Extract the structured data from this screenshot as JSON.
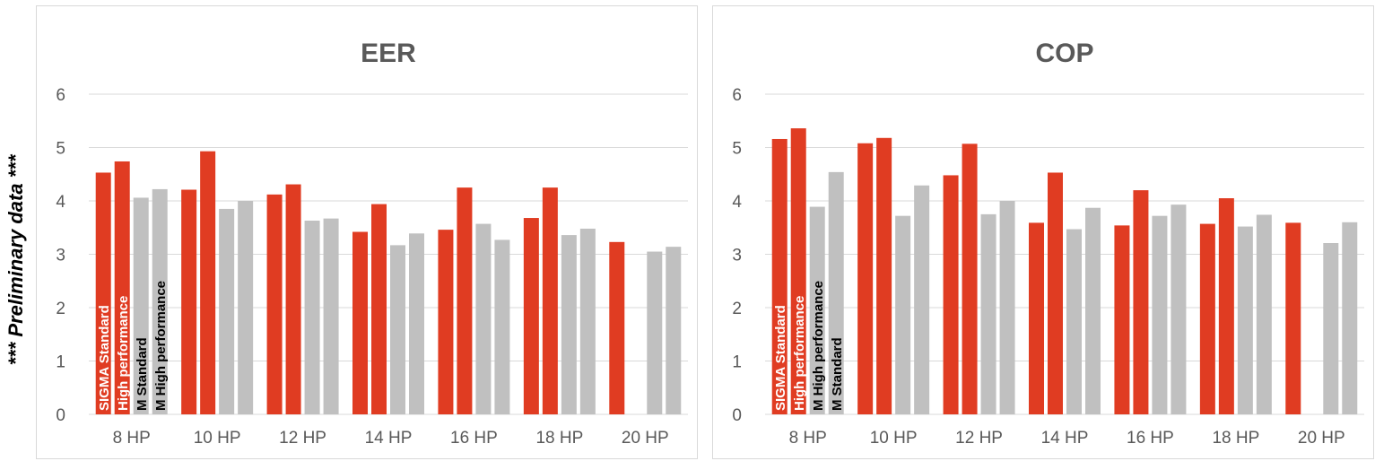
{
  "side_note": "*** Preliminary data ***",
  "colors": {
    "sigma": "#e03c22",
    "m": "#c0c0c0",
    "grid": "#d9d9d9",
    "text": "#595959"
  },
  "chart_data": [
    {
      "type": "bar",
      "title": "EER",
      "categories": [
        "8 HP",
        "10 HP",
        "12 HP",
        "14 HP",
        "16 HP",
        "18 HP",
        "20 HP"
      ],
      "ylim": [
        0,
        6
      ],
      "yticks": [
        0,
        1,
        2,
        3,
        4,
        5,
        6
      ],
      "grid": true,
      "series": [
        {
          "name": "SIGMA Standard",
          "color": "#e03c22",
          "values": [
            4.53,
            4.21,
            4.12,
            3.42,
            3.46,
            3.68,
            3.23
          ]
        },
        {
          "name": "High performance",
          "color": "#e03c22",
          "values": [
            4.74,
            4.93,
            4.31,
            3.94,
            4.25,
            4.25,
            null
          ]
        },
        {
          "name": "M Standard",
          "color": "#c0c0c0",
          "values": [
            4.06,
            3.85,
            3.63,
            3.17,
            3.57,
            3.36,
            3.05
          ]
        },
        {
          "name": "M High performance",
          "color": "#c0c0c0",
          "values": [
            4.22,
            4.0,
            3.67,
            3.39,
            3.27,
            3.48,
            3.14
          ]
        }
      ]
    },
    {
      "type": "bar",
      "title": "COP",
      "categories": [
        "8 HP",
        "10 HP",
        "12 HP",
        "14 HP",
        "16 HP",
        "18 HP",
        "20 HP"
      ],
      "ylim": [
        0,
        6
      ],
      "yticks": [
        0,
        1,
        2,
        3,
        4,
        5,
        6
      ],
      "grid": true,
      "series": [
        {
          "name": "SIGMA Standard",
          "color": "#e03c22",
          "values": [
            5.16,
            5.08,
            4.48,
            3.59,
            3.54,
            3.57,
            3.59
          ]
        },
        {
          "name": "High performance",
          "color": "#e03c22",
          "values": [
            5.36,
            5.18,
            5.07,
            4.53,
            4.2,
            4.05,
            null
          ]
        },
        {
          "name": "M High performance",
          "color": "#c0c0c0",
          "values": [
            3.89,
            3.72,
            3.75,
            3.47,
            3.72,
            3.52,
            3.21
          ]
        },
        {
          "name": "M Standard",
          "color": "#c0c0c0",
          "values": [
            4.54,
            4.29,
            4.0,
            3.87,
            3.93,
            3.74,
            3.6
          ]
        }
      ]
    }
  ]
}
